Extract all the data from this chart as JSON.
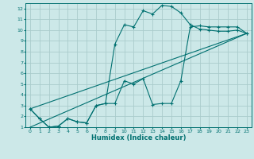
{
  "xlabel": "Humidex (Indice chaleur)",
  "bg_color": "#cce8e8",
  "grid_color": "#aacccc",
  "line_color": "#007070",
  "xlim": [
    -0.5,
    23.5
  ],
  "ylim": [
    1,
    12.5
  ],
  "xticks": [
    0,
    1,
    2,
    3,
    4,
    5,
    6,
    7,
    8,
    9,
    10,
    11,
    12,
    13,
    14,
    15,
    16,
    17,
    18,
    19,
    20,
    21,
    22,
    23
  ],
  "yticks": [
    1,
    2,
    3,
    4,
    5,
    6,
    7,
    8,
    9,
    10,
    11,
    12
  ],
  "line1_x": [
    0,
    1,
    2,
    3,
    4,
    5,
    6,
    7,
    8,
    9,
    10,
    11,
    12,
    13,
    14,
    15,
    16,
    17,
    18,
    19,
    20,
    21,
    22,
    23
  ],
  "line1_y": [
    2.7,
    1.8,
    1.0,
    1.1,
    1.8,
    1.5,
    1.4,
    3.0,
    3.2,
    3.2,
    5.3,
    5.0,
    5.5,
    3.1,
    3.2,
    3.2,
    5.3,
    10.3,
    10.4,
    10.3,
    10.3,
    10.3,
    10.3,
    9.7
  ],
  "line2_x": [
    0,
    1,
    2,
    3,
    4,
    5,
    6,
    7,
    8,
    9,
    10,
    11,
    12,
    13,
    14,
    15,
    16,
    17,
    18,
    19,
    20,
    21,
    22,
    23
  ],
  "line2_y": [
    2.7,
    1.8,
    1.0,
    1.1,
    1.8,
    1.5,
    1.4,
    3.0,
    3.2,
    8.7,
    10.5,
    10.3,
    11.8,
    11.5,
    12.3,
    12.2,
    11.6,
    10.5,
    10.1,
    10.0,
    9.9,
    9.9,
    10.0,
    9.7
  ],
  "line3_x": [
    0,
    23
  ],
  "line3_y": [
    2.7,
    9.7
  ],
  "line4_x": [
    0,
    23
  ],
  "line4_y": [
    1.0,
    9.7
  ]
}
